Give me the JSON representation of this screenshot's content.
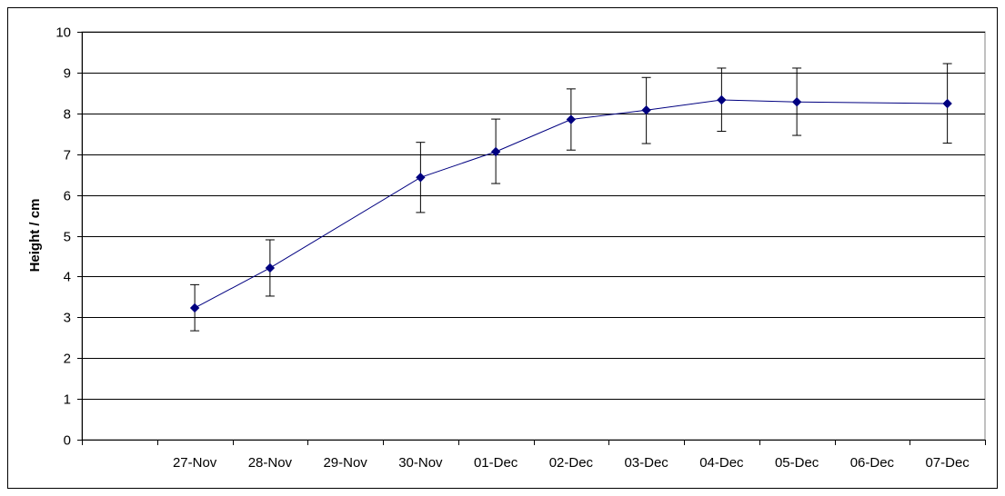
{
  "chart_data": {
    "type": "line",
    "title": "",
    "xlabel": "",
    "ylabel": "Height / cm",
    "ylim": [
      0,
      10
    ],
    "yticks": [
      0,
      1,
      2,
      3,
      4,
      5,
      6,
      7,
      8,
      9,
      10
    ],
    "grid": true,
    "categories": [
      "27-Nov",
      "28-Nov",
      "29-Nov",
      "30-Nov",
      "01-Dec",
      "02-Dec",
      "03-Dec",
      "04-Dec",
      "05-Dec",
      "06-Dec",
      "07-Dec"
    ],
    "series": [
      {
        "color": "#000080",
        "points": [
          {
            "x": "27-Nov",
            "y": 3.23,
            "err_low": 2.67,
            "err_high": 3.8
          },
          {
            "x": "28-Nov",
            "y": 4.21,
            "err_low": 3.52,
            "err_high": 4.9
          },
          {
            "x": "30-Nov",
            "y": 6.43,
            "err_low": 5.57,
            "err_high": 7.29
          },
          {
            "x": "01-Dec",
            "y": 7.06,
            "err_low": 6.28,
            "err_high": 7.86
          },
          {
            "x": "02-Dec",
            "y": 7.85,
            "err_low": 7.1,
            "err_high": 8.6
          },
          {
            "x": "03-Dec",
            "y": 8.08,
            "err_low": 7.26,
            "err_high": 8.88
          },
          {
            "x": "04-Dec",
            "y": 8.33,
            "err_low": 7.56,
            "err_high": 9.11
          },
          {
            "x": "05-Dec",
            "y": 8.28,
            "err_low": 7.46,
            "err_high": 9.11
          },
          {
            "x": "07-Dec",
            "y": 8.24,
            "err_low": 7.27,
            "err_high": 9.22
          }
        ]
      }
    ]
  }
}
